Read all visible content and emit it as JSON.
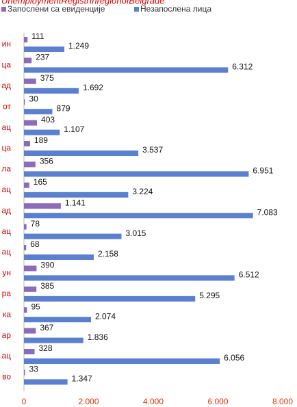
{
  "chart_data": {
    "type": "bar",
    "orientation": "horizontal",
    "title": "UnemploymentRegistrInregionofBelgrade",
    "categories": [
      "ин",
      "ца",
      "ад",
      "от",
      "ац",
      "ца",
      "ла",
      "ац",
      "ад",
      "ац",
      "ац",
      "ун",
      "ра",
      "ка",
      "ар",
      "ац",
      "во"
    ],
    "series": [
      {
        "name": "Запослени са евиденције",
        "color": "#8e6bb8",
        "values": [
          111,
          237,
          375,
          30,
          403,
          189,
          356,
          165,
          1141,
          78,
          68,
          390,
          385,
          95,
          367,
          328,
          33
        ],
        "value_labels": [
          "111",
          "237",
          "375",
          "30",
          "403",
          "189",
          "356",
          "165",
          "1.141",
          "78",
          "68",
          "390",
          "385",
          "95",
          "367",
          "328",
          "33"
        ]
      },
      {
        "name": "Незапослена лица",
        "color": "#5b80d0",
        "values": [
          1249,
          6312,
          1692,
          879,
          1107,
          3537,
          6951,
          3224,
          7083,
          3015,
          2158,
          6512,
          5295,
          2074,
          1836,
          6056,
          1347
        ],
        "value_labels": [
          "1.249",
          "6.312",
          "1.692",
          "879",
          "1.107",
          "3.537",
          "6.951",
          "3.224",
          "7.083",
          "3.015",
          "2.158",
          "6.512",
          "5.295",
          "2.074",
          "1.836",
          "6.056",
          "1.347"
        ]
      }
    ],
    "xlim": [
      0,
      8000
    ],
    "xticks": [
      0,
      {
        "value": 2000,
        "label": "2.000"
      },
      {
        "value": 4000,
        "label": "4.000"
      },
      {
        "value": 6000,
        "label": "6.000"
      },
      {
        "value": 8000,
        "label": "8.000"
      }
    ]
  }
}
